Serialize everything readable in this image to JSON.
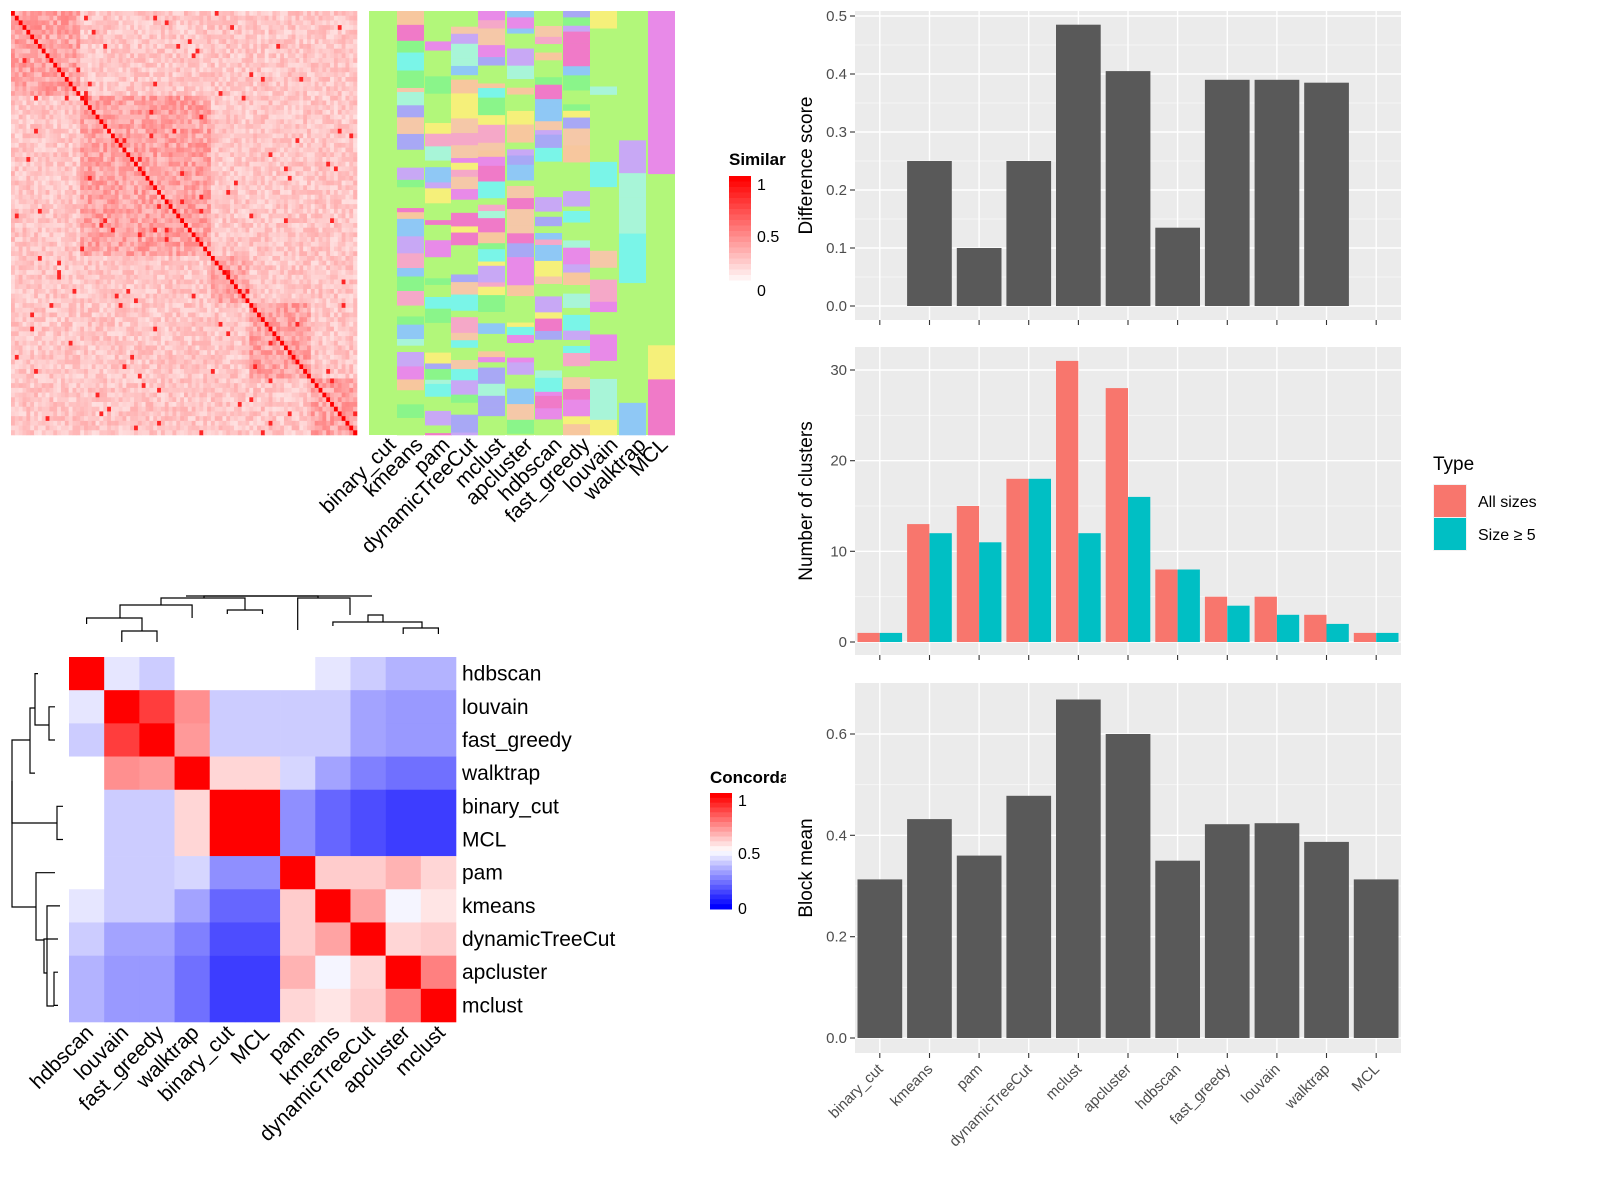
{
  "chart_data": [
    {
      "type": "heatmap",
      "panel": "similarity-heatmap",
      "legend": {
        "title": "Similarity",
        "ticks": [
          "1",
          "0.5",
          "0"
        ]
      },
      "colors": {
        "low": "#ffffff",
        "high": "#ff0000"
      }
    },
    {
      "type": "heatmap",
      "panel": "cluster-membership",
      "columns": [
        "binary_cut",
        "kmeans",
        "pam",
        "dynamicTreeCut",
        "mclust",
        "apcluster",
        "hdbscan",
        "fast_greedy",
        "louvain",
        "walktrap",
        "MCL"
      ],
      "background": "#b2f77a"
    },
    {
      "type": "heatmap",
      "panel": "concordance-heatmap",
      "legend": {
        "title": "Concordance",
        "ticks": [
          "1",
          "0.5",
          "0"
        ]
      },
      "colors": {
        "low": "#0000ff",
        "mid": "#ffffff",
        "high": "#ff0000"
      },
      "labels": [
        "hdbscan",
        "louvain",
        "fast_greedy",
        "walktrap",
        "binary_cut",
        "MCL",
        "pam",
        "kmeans",
        "dynamicTreeCut",
        "apcluster",
        "mclust"
      ],
      "matrix": [
        [
          1.0,
          0.45,
          0.4,
          0.5,
          0.5,
          0.5,
          0.5,
          0.45,
          0.4,
          0.35,
          0.35
        ],
        [
          0.45,
          1.0,
          0.88,
          0.72,
          0.4,
          0.4,
          0.4,
          0.4,
          0.32,
          0.3,
          0.3
        ],
        [
          0.4,
          0.88,
          1.0,
          0.7,
          0.4,
          0.4,
          0.4,
          0.4,
          0.32,
          0.3,
          0.3
        ],
        [
          0.5,
          0.72,
          0.7,
          1.0,
          0.58,
          0.58,
          0.42,
          0.32,
          0.25,
          0.22,
          0.22
        ],
        [
          0.5,
          0.4,
          0.4,
          0.58,
          1.0,
          1.0,
          0.28,
          0.2,
          0.15,
          0.12,
          0.12
        ],
        [
          0.5,
          0.4,
          0.4,
          0.58,
          1.0,
          1.0,
          0.28,
          0.2,
          0.15,
          0.12,
          0.12
        ],
        [
          0.5,
          0.4,
          0.4,
          0.42,
          0.28,
          0.28,
          1.0,
          0.6,
          0.6,
          0.65,
          0.58
        ],
        [
          0.45,
          0.4,
          0.4,
          0.32,
          0.2,
          0.2,
          0.6,
          1.0,
          0.68,
          0.48,
          0.55
        ],
        [
          0.4,
          0.32,
          0.32,
          0.25,
          0.15,
          0.15,
          0.6,
          0.68,
          1.0,
          0.58,
          0.6
        ],
        [
          0.35,
          0.3,
          0.3,
          0.22,
          0.12,
          0.12,
          0.65,
          0.48,
          0.58,
          1.0,
          0.75
        ],
        [
          0.35,
          0.3,
          0.3,
          0.22,
          0.12,
          0.12,
          0.58,
          0.55,
          0.6,
          0.75,
          1.0
        ]
      ]
    },
    {
      "type": "bar",
      "panel": "difference-score",
      "categories": [
        "binary_cut",
        "kmeans",
        "pam",
        "dynamicTreeCut",
        "mclust",
        "apcluster",
        "hdbscan",
        "fast_greedy",
        "louvain",
        "walktrap",
        "MCL"
      ],
      "values": [
        0,
        0.25,
        0.1,
        0.25,
        0.485,
        0.405,
        0.135,
        0.39,
        0.39,
        0.385,
        0
      ],
      "ylabel": "Difference score",
      "ylim": [
        0,
        0.5
      ],
      "yticks": [
        "0.0",
        "0.1",
        "0.2",
        "0.3",
        "0.4",
        "0.5"
      ],
      "bar_color": "#595959"
    },
    {
      "type": "bar",
      "panel": "number-of-clusters",
      "categories": [
        "binary_cut",
        "kmeans",
        "pam",
        "dynamicTreeCut",
        "mclust",
        "apcluster",
        "hdbscan",
        "fast_greedy",
        "louvain",
        "walktrap",
        "MCL"
      ],
      "series": [
        {
          "name": "All sizes",
          "color": "#f8766d",
          "values": [
            1,
            13,
            15,
            18,
            31,
            28,
            8,
            5,
            5,
            3,
            1
          ]
        },
        {
          "name": "Size ≥ 5",
          "color": "#00bfc4",
          "values": [
            1,
            12,
            11,
            18,
            12,
            16,
            8,
            4,
            3,
            2,
            1
          ]
        }
      ],
      "ylabel": "Number of clusters",
      "ylim": [
        0,
        30
      ],
      "yticks": [
        "0",
        "10",
        "20",
        "30"
      ],
      "legend": {
        "title": "Type",
        "placement": "right"
      }
    },
    {
      "type": "bar",
      "panel": "block-mean",
      "categories": [
        "binary_cut",
        "kmeans",
        "pam",
        "dynamicTreeCut",
        "mclust",
        "apcluster",
        "hdbscan",
        "fast_greedy",
        "louvain",
        "walktrap",
        "MCL"
      ],
      "values": [
        0.313,
        0.432,
        0.36,
        0.478,
        0.668,
        0.6,
        0.35,
        0.422,
        0.424,
        0.387,
        0.313
      ],
      "ylabel": "Block mean",
      "ylim": [
        0,
        0.6
      ],
      "yticks": [
        "0.0",
        "0.2",
        "0.4",
        "0.6"
      ],
      "bar_color": "#595959"
    }
  ]
}
